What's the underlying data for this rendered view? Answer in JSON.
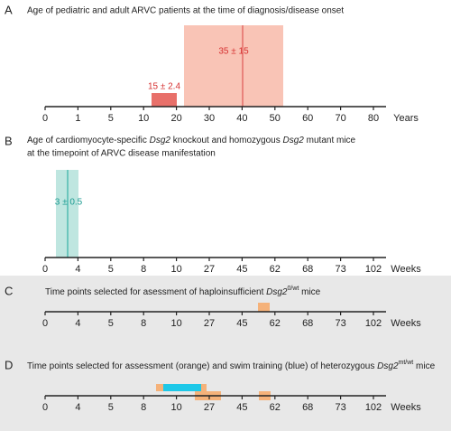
{
  "panels": [
    {
      "letter": "A",
      "title": [
        "Age of pediatric and adult ARVC patients at the time of diagnosis/disease onset"
      ],
      "ticks": [
        "0",
        "1",
        "5",
        "10",
        "20",
        "30",
        "40",
        "50",
        "60",
        "70",
        "80"
      ],
      "unit": "Years",
      "annotations": [
        "15 ± 2.4",
        "35 ± 15"
      ]
    },
    {
      "letter": "B",
      "title": [
        "Age of cardiomyocyte-specific ",
        "Dsg2",
        " knockout and homozygous ",
        "Dsg2",
        " mutant mice",
        "at the timepoint of ARVC disease manifestation"
      ],
      "ticks": [
        "0",
        "4",
        "5",
        "8",
        "10",
        "27",
        "45",
        "62",
        "68",
        "73",
        "102"
      ],
      "unit": "Weeks",
      "annotations": [
        "3 ± 0.5"
      ]
    },
    {
      "letter": "C",
      "title": [
        "Time points selected for asessment of haploinsufficient ",
        "Dsg2",
        "0/wt",
        " mice"
      ],
      "ticks": [
        "0",
        "4",
        "5",
        "8",
        "10",
        "27",
        "45",
        "62",
        "68",
        "73",
        "102"
      ],
      "unit": "Weeks"
    },
    {
      "letter": "D",
      "title": [
        "Time points selected for assessment (orange) and swim training (blue) of heterozygous ",
        "Dsg2",
        "mt/wt",
        " mice"
      ],
      "ticks": [
        "0",
        "4",
        "5",
        "8",
        "10",
        "27",
        "45",
        "62",
        "68",
        "73",
        "102"
      ],
      "unit": "Weeks"
    }
  ]
}
